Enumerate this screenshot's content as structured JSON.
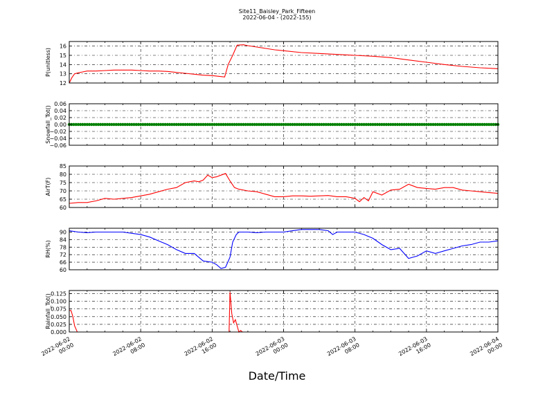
{
  "figure": {
    "title_line1": "Site11_Baisley_Park_Fifteen",
    "title_line2": "2022-06-04 - (2022-155)",
    "xlabel": "Date/Time"
  },
  "x_axis": {
    "start": "2022-06-02 00:00",
    "end": "2022-06-04 00:00",
    "ticks": [
      {
        "hours": 0,
        "line1": "2022-06-02",
        "line2": "00:00"
      },
      {
        "hours": 8,
        "line1": "2022-06-02",
        "line2": "08:00"
      },
      {
        "hours": 16,
        "line1": "2022-06-02",
        "line2": "16:00"
      },
      {
        "hours": 24,
        "line1": "2022-06-03",
        "line2": "00:00"
      },
      {
        "hours": 32,
        "line1": "2022-06-03",
        "line2": "08:00"
      },
      {
        "hours": 40,
        "line1": "2022-06-03",
        "line2": "16:00"
      },
      {
        "hours": 48,
        "line1": "2022-06-04",
        "line2": "00:00"
      }
    ]
  },
  "chart_data": [
    {
      "type": "line",
      "ylabel": "P(unitless)",
      "color": "#ff0000",
      "ylim": [
        12,
        16.5
      ],
      "yticks": [
        "12",
        "13",
        "14",
        "15",
        "16"
      ],
      "ytick_values": [
        12,
        13,
        14,
        15,
        16
      ],
      "grid": true,
      "x_hours": [
        0,
        0.3,
        0.6,
        1,
        1.5,
        2,
        3,
        4,
        5,
        6,
        7,
        8,
        9,
        10,
        11,
        12,
        13,
        14,
        15,
        16,
        17,
        17.4,
        17.8,
        18.3,
        18.8,
        19.5,
        20,
        21,
        22,
        23,
        24,
        26,
        28,
        30,
        32,
        34,
        36,
        38,
        40,
        42,
        44,
        46,
        48
      ],
      "y": [
        12.0,
        12.6,
        13.0,
        13.1,
        13.2,
        13.3,
        13.3,
        13.35,
        13.4,
        13.4,
        13.4,
        13.35,
        13.3,
        13.3,
        13.25,
        13.15,
        13.05,
        12.95,
        12.85,
        12.8,
        12.7,
        12.65,
        14.0,
        15.0,
        16.1,
        16.15,
        16.05,
        15.9,
        15.75,
        15.6,
        15.5,
        15.3,
        15.2,
        15.1,
        15.0,
        14.9,
        14.75,
        14.5,
        14.25,
        14.0,
        13.8,
        13.65,
        13.55
      ]
    },
    {
      "type": "scatter",
      "ylabel": "Snowfall_Tot()",
      "color": "#008000",
      "ylim": [
        -0.06,
        0.06
      ],
      "yticks": [
        "−0.06",
        "−0.04",
        "−0.02",
        "0.00",
        "0.02",
        "0.04",
        "0.06"
      ],
      "ytick_values": [
        -0.06,
        -0.04,
        -0.02,
        0,
        0.02,
        0.04,
        0.06
      ],
      "grid": true,
      "constant_value": 0.0
    },
    {
      "type": "line",
      "ylabel": "AirT(F)",
      "color": "#ff0000",
      "ylim": [
        60,
        85
      ],
      "yticks": [
        "60",
        "65",
        "70",
        "75",
        "80",
        "85"
      ],
      "ytick_values": [
        60,
        65,
        70,
        75,
        80,
        85
      ],
      "grid": true,
      "x_hours": [
        0,
        1,
        2,
        3,
        4,
        5,
        6,
        7,
        8,
        9,
        10,
        11,
        12,
        13,
        14,
        14.5,
        15,
        15.5,
        16,
        16.5,
        17,
        17.5,
        18,
        18.5,
        19,
        20,
        21,
        22,
        23,
        24,
        25,
        26,
        27,
        28,
        29,
        30,
        31,
        32,
        32.5,
        33,
        33.5,
        34,
        35,
        36,
        37,
        38,
        38.5,
        39,
        40,
        41,
        42,
        43,
        44,
        45,
        46,
        47,
        48
      ],
      "y": [
        62.5,
        63,
        63,
        64,
        65.5,
        65,
        65.5,
        66,
        67,
        68,
        69.5,
        71,
        72,
        75,
        76,
        75.5,
        76.5,
        79.5,
        78,
        78.5,
        79.5,
        80.5,
        76,
        72,
        71,
        70,
        69.5,
        68,
        66.5,
        66.5,
        67,
        67,
        66.8,
        67,
        67.2,
        66.5,
        66.5,
        65.5,
        63.5,
        66,
        64,
        69.5,
        67.5,
        70.5,
        71,
        74,
        73,
        72,
        71.5,
        71,
        72,
        72,
        70.5,
        70,
        69.5,
        69,
        68.5
      ]
    },
    {
      "type": "line",
      "ylabel": "RH(%)",
      "color": "#0000ff",
      "ylim": [
        60,
        93
      ],
      "yticks": [
        "60",
        "66",
        "72",
        "78",
        "84",
        "90"
      ],
      "ytick_values": [
        60,
        66,
        72,
        78,
        84,
        90
      ],
      "grid": true,
      "x_hours": [
        0,
        1,
        2,
        3,
        4,
        5,
        6,
        7,
        8,
        9,
        10,
        11,
        12,
        13,
        14,
        15,
        16,
        16.5,
        17,
        17.5,
        18,
        18.3,
        18.7,
        19,
        20,
        21,
        22,
        23,
        24,
        25,
        26,
        27,
        28,
        29,
        29.5,
        30,
        31,
        32,
        33,
        34,
        35,
        36,
        37,
        38,
        39,
        40,
        41,
        42,
        43,
        44,
        45,
        46,
        47,
        48
      ],
      "y": [
        91,
        90,
        89.5,
        90,
        90,
        90,
        90,
        89,
        88,
        86,
        83,
        80,
        76,
        73,
        73,
        67,
        66,
        64,
        61,
        62,
        70,
        82,
        88,
        90,
        90,
        89.5,
        90,
        90,
        90,
        91,
        92,
        92,
        92,
        91,
        88,
        90,
        90,
        90,
        88,
        85,
        80,
        76,
        77,
        69,
        71,
        75,
        73,
        75,
        77,
        79,
        80,
        82,
        82,
        83
      ]
    },
    {
      "type": "line",
      "ylabel": "Rainfall_Tot()",
      "color": "#ff0000",
      "ylim": [
        0,
        0.135
      ],
      "yticks": [
        "0.000",
        "0.025",
        "0.050",
        "0.075",
        "0.100",
        "0.125"
      ],
      "ytick_values": [
        0,
        0.025,
        0.05,
        0.075,
        0.1,
        0.125
      ],
      "grid": true,
      "x_hours": [
        0,
        0.2,
        0.4,
        0.6,
        0.9,
        48
      ],
      "y": [
        0.07,
        0.07,
        0.05,
        0.02,
        0,
        0
      ],
      "segments": [
        {
          "x_hours": [
            0,
            0.2,
            0.4,
            0.6,
            0.9,
            17.9
          ],
          "y": [
            0.07,
            0.07,
            0.05,
            0.02,
            0,
            0
          ]
        },
        {
          "x_hours": [
            17.9,
            18.0,
            18.2,
            18.4,
            18.6,
            18.8,
            19.0,
            19.2,
            19.4,
            19.6,
            48
          ],
          "y": [
            0,
            0.13,
            0.06,
            0.03,
            0.04,
            0.02,
            0,
            0.005,
            0,
            0,
            0
          ]
        }
      ]
    }
  ]
}
